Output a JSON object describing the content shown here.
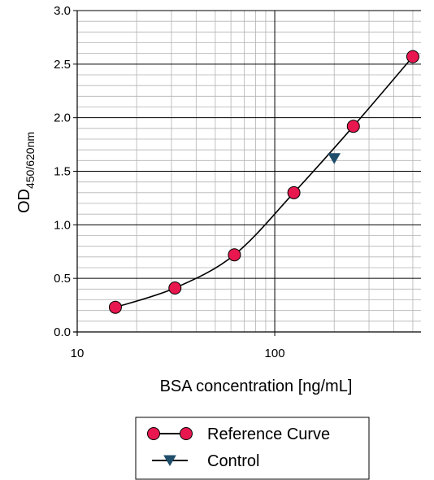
{
  "chart_data": {
    "type": "scatter",
    "xscale": "log",
    "xlim": [
      10,
      550
    ],
    "ylim": [
      0.0,
      3.0
    ],
    "xlabel": "BSA concentration [ng/mL]",
    "ylabel": {
      "main": "OD",
      "sub": "450/620nm"
    },
    "xticks": [
      {
        "value": 10,
        "label": "10"
      },
      {
        "value": 100,
        "label": "100"
      }
    ],
    "yticks": [
      {
        "value": 0.0,
        "label": "0.0"
      },
      {
        "value": 0.5,
        "label": "0.5"
      },
      {
        "value": 1.0,
        "label": "1.0"
      },
      {
        "value": 1.5,
        "label": "1.5"
      },
      {
        "value": 2.0,
        "label": "2.0"
      },
      {
        "value": 2.5,
        "label": "2.5"
      },
      {
        "value": 3.0,
        "label": "3.0"
      }
    ],
    "grid": true,
    "legend_position": "bottom-center",
    "series": [
      {
        "name": "Reference Curve",
        "marker": "circle",
        "line": true,
        "color": "#e8174f",
        "x": [
          15.6,
          31.25,
          62.5,
          125,
          250,
          500
        ],
        "y": [
          0.23,
          0.41,
          0.72,
          1.3,
          1.92,
          2.57
        ]
      },
      {
        "name": "Control",
        "marker": "triangle-down",
        "line": false,
        "color": "#1f4e6b",
        "x": [
          200
        ],
        "y": [
          1.62
        ]
      }
    ]
  }
}
